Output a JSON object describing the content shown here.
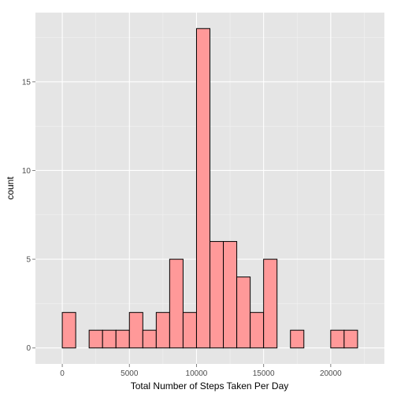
{
  "chart_data": {
    "type": "bar",
    "subtype": "histogram",
    "xlabel": "Total Number of Steps Taken Per Day",
    "ylabel": "count",
    "x_ticks": [
      0,
      5000,
      10000,
      15000,
      20000
    ],
    "y_ticks": [
      0,
      5,
      10,
      15
    ],
    "xlim": [
      -2000,
      24000
    ],
    "ylim": [
      -0.9,
      18.9
    ],
    "grid": true,
    "bin_width": 1000,
    "bins": [
      {
        "start": -1000,
        "end": 0,
        "count": 0
      },
      {
        "start": 0,
        "end": 1000,
        "count": 2
      },
      {
        "start": 1000,
        "end": 2000,
        "count": 0
      },
      {
        "start": 2000,
        "end": 3000,
        "count": 1
      },
      {
        "start": 3000,
        "end": 4000,
        "count": 1
      },
      {
        "start": 4000,
        "end": 5000,
        "count": 1
      },
      {
        "start": 5000,
        "end": 6000,
        "count": 2
      },
      {
        "start": 6000,
        "end": 7000,
        "count": 1
      },
      {
        "start": 7000,
        "end": 8000,
        "count": 2
      },
      {
        "start": 8000,
        "end": 9000,
        "count": 5
      },
      {
        "start": 9000,
        "end": 10000,
        "count": 2
      },
      {
        "start": 10000,
        "end": 11000,
        "count": 18
      },
      {
        "start": 11000,
        "end": 12000,
        "count": 6
      },
      {
        "start": 12000,
        "end": 13000,
        "count": 6
      },
      {
        "start": 13000,
        "end": 14000,
        "count": 4
      },
      {
        "start": 14000,
        "end": 15000,
        "count": 2
      },
      {
        "start": 15000,
        "end": 16000,
        "count": 5
      },
      {
        "start": 16000,
        "end": 17000,
        "count": 0
      },
      {
        "start": 17000,
        "end": 18000,
        "count": 1
      },
      {
        "start": 18000,
        "end": 19000,
        "count": 0
      },
      {
        "start": 19000,
        "end": 20000,
        "count": 0
      },
      {
        "start": 20000,
        "end": 21000,
        "count": 1
      },
      {
        "start": 21000,
        "end": 22000,
        "count": 1
      },
      {
        "start": 22000,
        "end": 23000,
        "count": 0
      }
    ],
    "colors": {
      "panel_background": "#e5e5e5",
      "grid_major": "#ffffff",
      "grid_minor": "#f2f2f2",
      "bar_fill": "#ff9999",
      "bar_outline": "#000000"
    }
  }
}
